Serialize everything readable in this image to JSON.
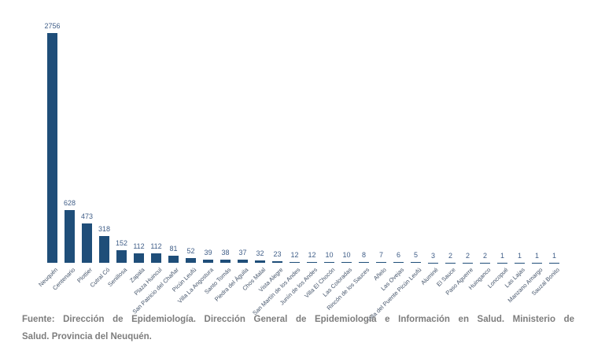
{
  "chart_data": {
    "type": "bar",
    "title": "",
    "xlabel": "",
    "ylabel": "",
    "ylim": [
      0,
      2756
    ],
    "grid": false,
    "legend": false,
    "data_labels_visible": true,
    "bar_color": "#1F4E79",
    "data_label_color": "#3F5D87",
    "category_label_color": "#44546A",
    "categories": [
      "Neuquén",
      "Centenario",
      "Plottier",
      "Cutral Có",
      "Senillosa",
      "Zapala",
      "Plaza Huincul",
      "San Patricio del Chañar",
      "Picún Leufú",
      "Villa La Angostura",
      "Santo Tomás",
      "Piedra del Águila",
      "Chos Malal",
      "Vista Alegre",
      "San Martín de los Andes",
      "Junín de los Andes",
      "Villa El Chocón",
      "Las Coloradas",
      "Rincón de los Sauces",
      "Añelo",
      "Las Ovejas",
      "Villa del Puente Picún Leufú",
      "Aluminé",
      "El Sauce",
      "Paso Aguerre",
      "Huinganco",
      "Loncopué",
      "Las Lajas",
      "Manzano Amargo",
      "Sauzal Bonito"
    ],
    "values": [
      2756,
      628,
      473,
      318,
      152,
      112,
      112,
      81,
      52,
      39,
      38,
      37,
      32,
      23,
      12,
      12,
      10,
      10,
      8,
      7,
      6,
      5,
      3,
      2,
      2,
      2,
      1,
      1,
      1,
      1
    ]
  },
  "footer": {
    "line1": "Fuente: Dirección de Epidemiología. Dirección General de Epidemiología e Información en Salud. Ministerio de",
    "line2": "Salud. Provincia del Neuquén."
  }
}
